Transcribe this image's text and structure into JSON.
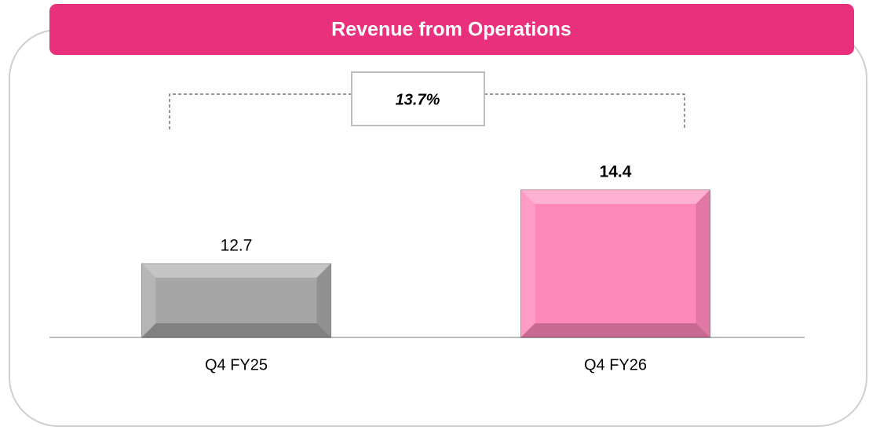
{
  "chart_data": {
    "type": "bar",
    "title": "Revenue from Operations",
    "categories": [
      "Q4 FY25",
      "Q4 FY26"
    ],
    "values": [
      12.7,
      14.4
    ],
    "colors": [
      "#a6a6a6",
      "#ff88bb"
    ],
    "annotation": "13.7%",
    "ylim": [
      11,
      15.5
    ]
  }
}
